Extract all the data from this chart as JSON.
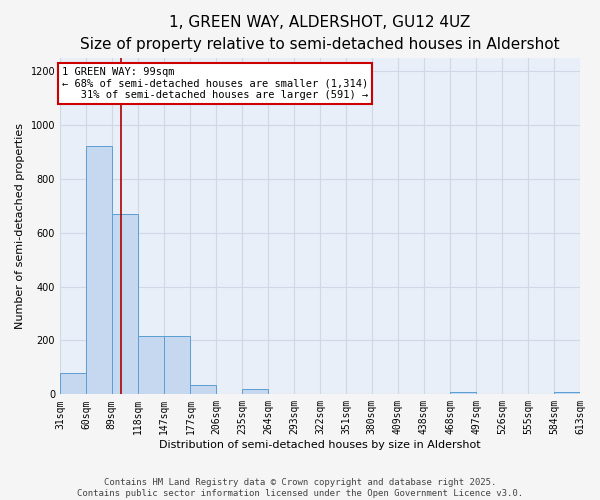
{
  "title": "1, GREEN WAY, ALDERSHOT, GU12 4UZ",
  "subtitle": "Size of property relative to semi-detached houses in Aldershot",
  "xlabel": "Distribution of semi-detached houses by size in Aldershot",
  "ylabel": "Number of semi-detached properties",
  "bar_edges": [
    31,
    60,
    89,
    118,
    147,
    177,
    206,
    235,
    264,
    293,
    322,
    351,
    380,
    409,
    438,
    468,
    497,
    526,
    555,
    584,
    613
  ],
  "bar_heights": [
    80,
    920,
    670,
    215,
    215,
    35,
    0,
    20,
    0,
    0,
    0,
    0,
    0,
    0,
    0,
    10,
    0,
    0,
    0,
    10
  ],
  "bar_color": "#c5d8f0",
  "bar_edge_color": "#5a9fd4",
  "bg_color": "#e8eff8",
  "grid_color": "#d0d8e8",
  "property_size": 99,
  "red_line_color": "#aa0000",
  "annotation_text": "1 GREEN WAY: 99sqm\n← 68% of semi-detached houses are smaller (1,314)\n   31% of semi-detached houses are larger (591) →",
  "annotation_box_edge": "#cc0000",
  "ylim": [
    0,
    1250
  ],
  "yticks": [
    0,
    200,
    400,
    600,
    800,
    1000,
    1200
  ],
  "tick_labels": [
    "31sqm",
    "60sqm",
    "89sqm",
    "118sqm",
    "147sqm",
    "177sqm",
    "206sqm",
    "235sqm",
    "264sqm",
    "293sqm",
    "322sqm",
    "351sqm",
    "380sqm",
    "409sqm",
    "438sqm",
    "468sqm",
    "497sqm",
    "526sqm",
    "555sqm",
    "584sqm",
    "613sqm"
  ],
  "footer_text": "Contains HM Land Registry data © Crown copyright and database right 2025.\nContains public sector information licensed under the Open Government Licence v3.0.",
  "title_fontsize": 11,
  "subtitle_fontsize": 9,
  "axis_label_fontsize": 8,
  "tick_fontsize": 7,
  "footer_fontsize": 6.5,
  "fig_bg": "#f5f5f5"
}
